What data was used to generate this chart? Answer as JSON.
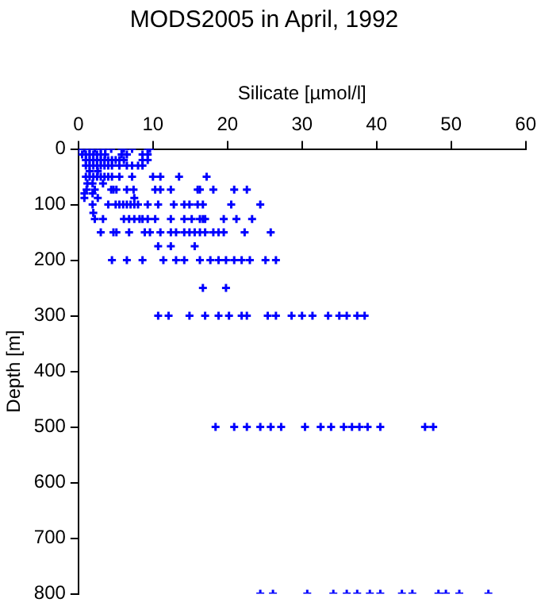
{
  "chart_data": {
    "type": "scatter",
    "title": "MODS2005 in April, 1992",
    "xlabel": "Silicate [µmol/l]",
    "ylabel": "Depth [m]",
    "xlim": [
      0,
      60
    ],
    "xticks": [
      0,
      10,
      20,
      30,
      40,
      50,
      60
    ],
    "ylim": [
      800,
      0
    ],
    "yticks": [
      0,
      100,
      200,
      300,
      400,
      500,
      600,
      700,
      800
    ],
    "grid": false,
    "legend": false,
    "marker": "cross",
    "series": [
      {
        "color": "#0000ff",
        "x": [
          0,
          0.8,
          1.5,
          2.2,
          3,
          3.6,
          4.4,
          5.8,
          6.1,
          7.2,
          9.3,
          9.6,
          0.5,
          1,
          1.5,
          2,
          2.5,
          3,
          3.6,
          5.8,
          6.5,
          8.6,
          9.3,
          1,
          1.5,
          2,
          2.5,
          3,
          3.5,
          4,
          4.5,
          5,
          5.5,
          6.1,
          8.6,
          9.3,
          1,
          1.5,
          2,
          2.5,
          3,
          3.5,
          4,
          4.5,
          5.5,
          6.5,
          7.2,
          8,
          8.6,
          1.5,
          2.6,
          1,
          1.5,
          2,
          2.5,
          3,
          3.5,
          4,
          4.5,
          5.5,
          7.2,
          10,
          11,
          13.5,
          17.2,
          1.2,
          1.9,
          3.3,
          1.1,
          2.2,
          4.4,
          4.7,
          5.1,
          6.5,
          7.4,
          10.3,
          11,
          12.4,
          16,
          16.3,
          18.1,
          20.9,
          22.6,
          0.8,
          1.9,
          0.8,
          2.6,
          7.5,
          1.9,
          4,
          5,
          5.5,
          6,
          6.5,
          7,
          7.5,
          8,
          9.3,
          10.7,
          12.8,
          14.2,
          14.9,
          16,
          16.7,
          20.5,
          24.4,
          2,
          2.2,
          3.3,
          6.1,
          6.8,
          7.5,
          8.2,
          8.6,
          9.3,
          10.3,
          12.4,
          14.2,
          15.2,
          16.3,
          16.7,
          17,
          19.5,
          21.2,
          23.3,
          3,
          4.7,
          5.1,
          6.8,
          8.9,
          9.6,
          11,
          12.4,
          13.1,
          14.2,
          14.9,
          15.6,
          16.3,
          17,
          18.1,
          18.8,
          19.5,
          22.3,
          25.8,
          10.7,
          12.4,
          15.6,
          4.5,
          6.5,
          8.6,
          11.4,
          13.1,
          14.2,
          16.3,
          17.7,
          18.8,
          19.8,
          20.9,
          21.9,
          23,
          25.1,
          26.5,
          16.7,
          19.8,
          10.7,
          12.1,
          14.9,
          17,
          18.8,
          20.2,
          21.9,
          22.6,
          25.4,
          26.5,
          28.6,
          30,
          31.4,
          33.5,
          35,
          36,
          37.4,
          38.4,
          18.4,
          20.9,
          22.6,
          24.4,
          25.8,
          27.2,
          30.4,
          32.5,
          33.9,
          35.6,
          36.7,
          37.7,
          38.8,
          40.5,
          46.5,
          47.6,
          24.4,
          26.1,
          30.7,
          34.2,
          36,
          37.4,
          39.1,
          40.5,
          43.4,
          44.8,
          48.3,
          49.3,
          51.1,
          55
        ],
        "values": [
          0,
          0,
          0,
          0,
          0,
          0,
          0,
          0,
          0,
          0,
          0,
          0,
          10,
          10,
          10,
          10,
          10,
          10,
          10,
          10,
          10,
          10,
          10,
          20,
          20,
          20,
          20,
          20,
          20,
          20,
          20,
          20,
          20,
          20,
          20,
          20,
          30,
          30,
          30,
          30,
          30,
          30,
          30,
          30,
          30,
          30,
          30,
          30,
          30,
          40,
          40,
          50,
          50,
          50,
          50,
          50,
          50,
          50,
          50,
          50,
          50,
          50,
          50,
          50,
          50,
          62,
          62,
          62,
          73,
          73,
          73,
          73,
          73,
          73,
          73,
          73,
          73,
          73,
          73,
          73,
          73,
          73,
          73,
          80,
          80,
          88,
          88,
          88,
          100,
          100,
          100,
          100,
          100,
          100,
          100,
          100,
          100,
          100,
          100,
          100,
          100,
          100,
          100,
          100,
          100,
          100,
          115,
          126,
          126,
          126,
          126,
          126,
          126,
          126,
          126,
          126,
          126,
          126,
          126,
          126,
          126,
          126,
          126,
          126,
          126,
          150,
          150,
          150,
          150,
          150,
          150,
          150,
          150,
          150,
          150,
          150,
          150,
          150,
          150,
          150,
          150,
          150,
          150,
          150,
          175,
          175,
          175,
          200,
          200,
          200,
          200,
          200,
          200,
          200,
          200,
          200,
          200,
          200,
          200,
          200,
          200,
          200,
          250,
          250,
          300,
          300,
          300,
          300,
          300,
          300,
          300,
          300,
          300,
          300,
          300,
          300,
          300,
          300,
          300,
          300,
          300,
          300,
          500,
          500,
          500,
          500,
          500,
          500,
          500,
          500,
          500,
          500,
          500,
          500,
          500,
          500,
          500,
          500,
          800,
          800,
          800,
          800,
          800,
          800,
          800,
          800,
          800,
          800,
          800,
          800,
          800,
          800
        ]
      }
    ]
  }
}
